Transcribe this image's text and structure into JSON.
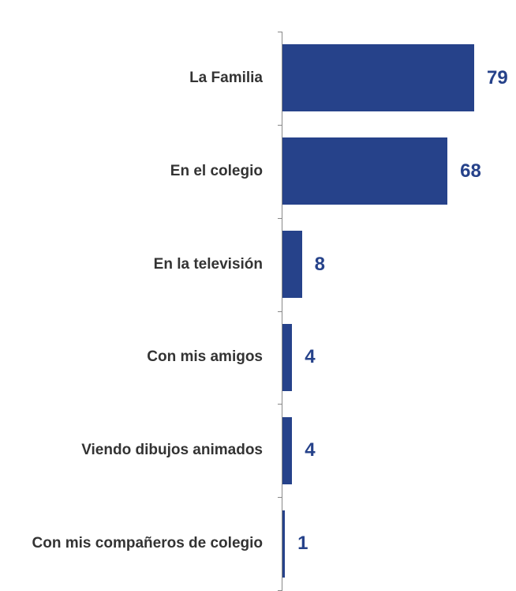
{
  "chart_data": {
    "type": "bar",
    "orientation": "horizontal",
    "categories": [
      "La Familia",
      "En el colegio",
      "En la televisión",
      "Con mis amigos",
      "Viendo dibujos animados",
      "Con mis compañeros de colegio"
    ],
    "values": [
      79,
      68,
      8,
      4,
      4,
      1
    ],
    "color": "#26428a"
  }
}
